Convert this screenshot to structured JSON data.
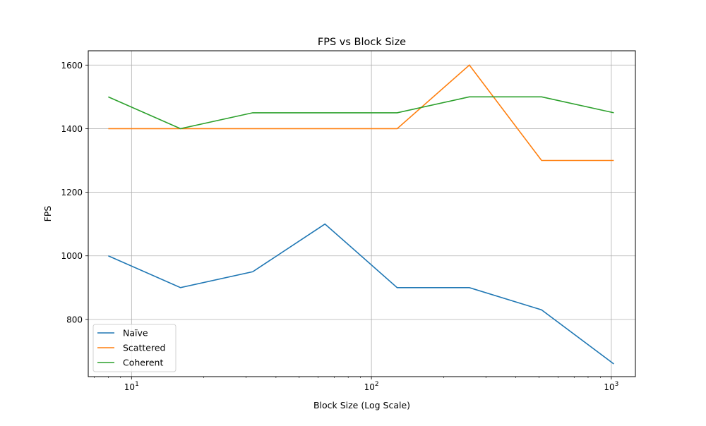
{
  "chart_data": {
    "type": "line",
    "title": "FPS vs Block Size",
    "xlabel": "Block Size (Log Scale)",
    "ylabel": "FPS",
    "x_scale": "log",
    "x": [
      8,
      16,
      32,
      64,
      128,
      256,
      512,
      1024
    ],
    "xlim": [
      6.6,
      1260
    ],
    "ylim": [
      620,
      1645
    ],
    "x_ticks": [
      {
        "value": 10,
        "base": "10",
        "exp": "1"
      },
      {
        "value": 100,
        "base": "10",
        "exp": "2"
      },
      {
        "value": 1000,
        "base": "10",
        "exp": "3"
      }
    ],
    "y_ticks": [
      800,
      1000,
      1200,
      1400,
      1600
    ],
    "grid": true,
    "legend_position": "lower-left",
    "series": [
      {
        "name": "Naïve",
        "color": "#1f77b4",
        "values": [
          1000,
          900,
          950,
          1100,
          900,
          900,
          830,
          660
        ]
      },
      {
        "name": "Scattered",
        "color": "#ff7f0e",
        "values": [
          1400,
          1400,
          1400,
          1400,
          1400,
          1600,
          1300,
          1300
        ]
      },
      {
        "name": "Coherent",
        "color": "#2ca02c",
        "values": [
          1500,
          1400,
          1450,
          1450,
          1450,
          1500,
          1500,
          1450
        ]
      }
    ]
  }
}
